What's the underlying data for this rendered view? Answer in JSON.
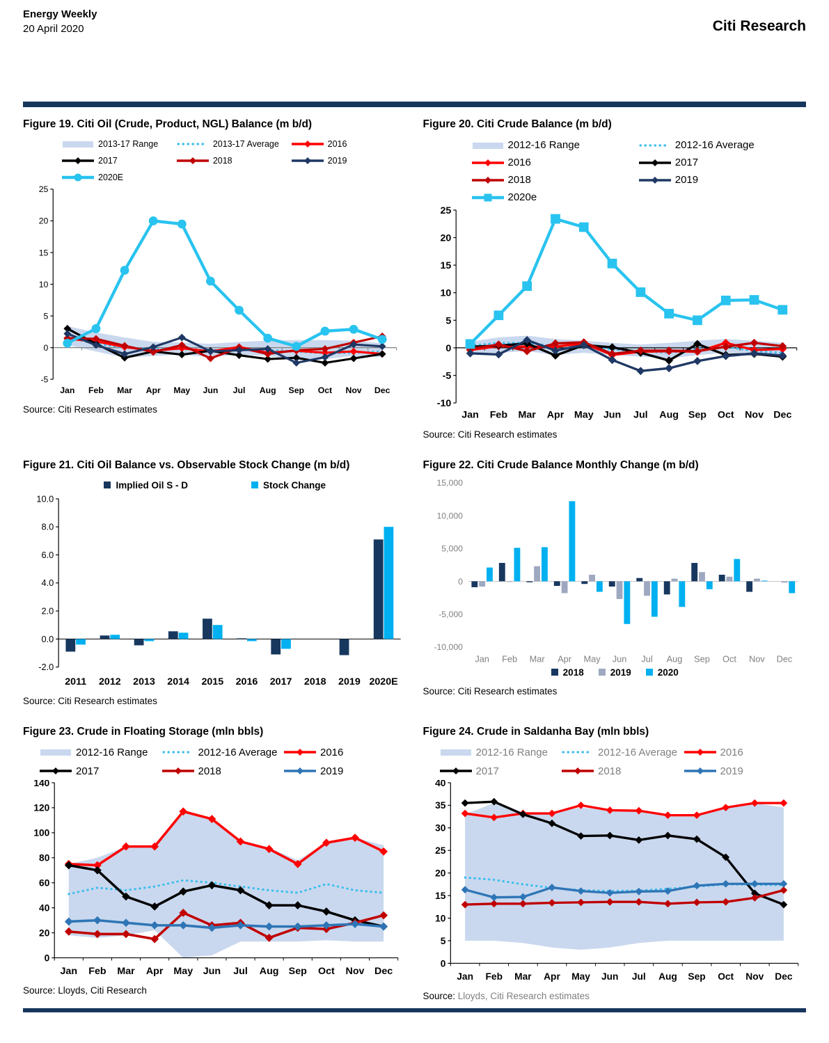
{
  "header": {
    "title": "Energy Weekly",
    "date": "20 April 2020",
    "brand": "Citi Research"
  },
  "chart_data": [
    {
      "figure": "Figure 19",
      "title": "Figure 19. Citi Oil (Crude, Product, NGL) Balance (m b/d)",
      "type": "line",
      "source_label": "Source:",
      "source_text": "Citi Research estimates",
      "categories": [
        "Jan",
        "Feb",
        "Mar",
        "Apr",
        "May",
        "Jun",
        "Jul",
        "Aug",
        "Sep",
        "Oct",
        "Nov",
        "Dec"
      ],
      "ylim": [
        -5,
        25
      ],
      "yticks": [
        "25",
        "20",
        "15",
        "10",
        "5",
        "0",
        "-5"
      ],
      "band": {
        "name": "2013-17 Range",
        "color": "#C9D8EE",
        "upper": [
          3.4,
          2.4,
          1.6,
          0.9,
          0.8,
          0.6,
          0.9,
          1.1,
          1.2,
          1.2,
          1.1,
          0.7
        ],
        "lower": [
          0.4,
          -0.6,
          -1.6,
          -1.3,
          -1.1,
          -1.5,
          -1.1,
          -1.3,
          -2.0,
          -1.8,
          -1.3,
          -1.5
        ]
      },
      "average": {
        "name": "2013-17 Average",
        "color": "#3FBEEE",
        "values": [
          1.6,
          0.6,
          0.0,
          -0.2,
          -0.2,
          -0.4,
          -0.3,
          -0.4,
          -0.6,
          -0.9,
          -0.8,
          -0.6
        ]
      },
      "series": [
        {
          "name": "2016",
          "color": "#FF0000",
          "marker": "diamond",
          "values": [
            1.4,
            1.0,
            0.1,
            -0.5,
            -0.1,
            -0.6,
            0.1,
            -0.8,
            -0.5,
            -0.8,
            -0.6,
            -1.0
          ]
        },
        {
          "name": "2017",
          "color": "#000000",
          "marker": "diamond",
          "values": [
            3.0,
            0.6,
            -1.6,
            -0.6,
            -1.1,
            -0.5,
            -1.2,
            -1.8,
            -1.6,
            -2.4,
            -1.7,
            -1.0
          ]
        },
        {
          "name": "2018",
          "color": "#C00000",
          "marker": "diamond",
          "values": [
            1.5,
            1.4,
            0.3,
            -0.7,
            0.4,
            -1.7,
            0.0,
            -1.0,
            -0.4,
            -0.2,
            0.8,
            1.8
          ]
        },
        {
          "name": "2019",
          "color": "#1F3864",
          "marker": "diamond",
          "values": [
            2.2,
            0.4,
            -1.0,
            0.1,
            1.6,
            -0.6,
            -0.4,
            -0.2,
            -2.4,
            -1.5,
            0.5,
            0.2
          ]
        },
        {
          "name": "2020E",
          "color": "#29C3EF",
          "marker": "circle",
          "values": [
            0.7,
            3.0,
            12.2,
            20.0,
            19.5,
            10.5,
            5.9,
            1.5,
            0.2,
            2.6,
            2.9,
            1.3
          ]
        }
      ],
      "legend": {
        "items": [
          {
            "label": "2013-17 Range",
            "swatch": "band"
          },
          {
            "label": "2013-17 Average",
            "swatch": "dotted"
          },
          {
            "label": "2016",
            "swatch": "line",
            "marker": "diamond",
            "color": "#FF0000"
          },
          {
            "label": "2017",
            "swatch": "line",
            "marker": "diamond",
            "color": "#000000"
          },
          {
            "label": "2018",
            "swatch": "line",
            "marker": "diamond",
            "color": "#C00000"
          },
          {
            "label": "2019",
            "swatch": "line",
            "marker": "diamond",
            "color": "#1F3864"
          },
          {
            "label": "2020E",
            "swatch": "line",
            "marker": "circle",
            "color": "#29C3EF"
          }
        ]
      }
    },
    {
      "figure": "Figure 20",
      "title": "Figure 20. Citi Crude Balance (m b/d)",
      "type": "line",
      "source_label": "Source:",
      "source_text": "Citi Research estimates",
      "categories": [
        "Jan",
        "Feb",
        "Mar",
        "Apr",
        "May",
        "Jun",
        "Jul",
        "Aug",
        "Sep",
        "Oct",
        "Nov",
        "Dec"
      ],
      "ylim": [
        -10,
        25
      ],
      "yticks": [
        "25",
        "20",
        "15",
        "10",
        "5",
        "0",
        "-5",
        "-10"
      ],
      "band": {
        "name": "2012-16 Range",
        "color": "#C9D8EE",
        "upper": [
          1.1,
          1.9,
          2.2,
          1.6,
          1.3,
          0.9,
          0.6,
          0.9,
          1.3,
          1.6,
          1.3,
          0.9
        ],
        "lower": [
          -0.9,
          -0.9,
          -0.6,
          -1.3,
          -0.9,
          -1.3,
          -1.6,
          -1.9,
          -1.3,
          -0.9,
          -1.3,
          -1.6
        ]
      },
      "average": {
        "name": "2012-16 Average",
        "color": "#3FBEEE",
        "values": [
          0.4,
          0.9,
          0.9,
          0.3,
          0.4,
          -0.3,
          -0.6,
          -0.9,
          -0.2,
          0.2,
          -0.6,
          -0.9
        ]
      },
      "series": [
        {
          "name": "2016",
          "color": "#FF0000",
          "marker": "diamond",
          "values": [
            -0.4,
            0.3,
            0.2,
            0.2,
            0.8,
            -1.3,
            -0.7,
            -0.6,
            -0.7,
            0.9,
            -0.4,
            -0.2
          ]
        },
        {
          "name": "2017",
          "color": "#000000",
          "marker": "diamond",
          "values": [
            0.2,
            0.4,
            0.8,
            -1.4,
            0.5,
            0.1,
            -0.9,
            -2.3,
            0.7,
            -1.3,
            -1.1,
            -1.6
          ]
        },
        {
          "name": "2018",
          "color": "#C00000",
          "marker": "diamond",
          "values": [
            -0.2,
            0.6,
            -0.6,
            0.8,
            1.0,
            -1.1,
            -0.5,
            -0.5,
            -0.6,
            0.2,
            0.9,
            0.3
          ]
        },
        {
          "name": "2019",
          "color": "#1F3864",
          "marker": "diamond",
          "values": [
            -1.0,
            -1.2,
            1.4,
            -0.5,
            0.5,
            -2.2,
            -4.2,
            -3.7,
            -2.4,
            -1.5,
            -1.0,
            -1.4
          ]
        },
        {
          "name": "2020e",
          "color": "#29C3EF",
          "marker": "square",
          "values": [
            0.7,
            5.9,
            11.2,
            23.4,
            21.9,
            15.3,
            10.1,
            6.2,
            5.0,
            8.6,
            8.7,
            6.9
          ]
        }
      ],
      "legend": {
        "items": [
          {
            "label": "2012-16 Range",
            "swatch": "band"
          },
          {
            "label": "2012-16 Average",
            "swatch": "dotted"
          },
          {
            "label": "2016",
            "swatch": "line",
            "marker": "diamond",
            "color": "#FF0000"
          },
          {
            "label": "2017",
            "swatch": "line",
            "marker": "diamond",
            "color": "#000000"
          },
          {
            "label": "2018",
            "swatch": "line",
            "marker": "diamond",
            "color": "#C00000"
          },
          {
            "label": "2019",
            "swatch": "line",
            "marker": "diamond",
            "color": "#1F3864"
          },
          {
            "label": "2020e",
            "swatch": "line",
            "marker": "square",
            "color": "#29C3EF"
          }
        ]
      }
    },
    {
      "figure": "Figure 21",
      "title": "Figure 21. Citi Oil Balance vs. Observable Stock Change (m b/d)",
      "type": "bar",
      "source_label": "Source:",
      "source_text": "Citi Research estimates",
      "categories": [
        "2011",
        "2012",
        "2013",
        "2014",
        "2015",
        "2016",
        "2017",
        "2018",
        "2019",
        "2020E"
      ],
      "ylim": [
        -2,
        10
      ],
      "yticks": [
        "10.0",
        "8.0",
        "6.0",
        "4.0",
        "2.0",
        "0.0",
        "-2.0"
      ],
      "series": [
        {
          "name": "Implied Oil S - D",
          "color": "#17375E",
          "values": [
            -0.9,
            0.25,
            -0.45,
            0.55,
            1.45,
            0.05,
            -1.1,
            0,
            -1.15,
            7.1
          ]
        },
        {
          "name": "Stock Change",
          "color": "#00B0F0",
          "values": [
            -0.4,
            0.3,
            -0.15,
            0.45,
            1.0,
            -0.15,
            -0.7,
            0,
            0,
            8.0
          ]
        }
      ],
      "legend": {
        "items": [
          {
            "label": "Implied Oil S - D",
            "swatch": "square",
            "color": "#17375E"
          },
          {
            "label": "Stock Change",
            "swatch": "square",
            "color": "#00B0F0"
          }
        ]
      }
    },
    {
      "figure": "Figure 22",
      "title": "Figure 22. Citi Crude Balance Monthly Change (m b/d)",
      "type": "bar",
      "source_label": "Source:",
      "source_text": "Citi Research estimates",
      "categories": [
        "Jan",
        "Feb",
        "Mar",
        "Apr",
        "May",
        "Jun",
        "Jul",
        "Aug",
        "Sep",
        "Oct",
        "Nov",
        "Dec"
      ],
      "ylim": [
        -10000,
        15000
      ],
      "yticks": [
        "15,000",
        "10,000",
        "5,000",
        "0",
        "-5,000",
        "-10,000"
      ],
      "series": [
        {
          "name": "2018",
          "color": "#17375E",
          "values": [
            -900,
            2800,
            -150,
            -700,
            -400,
            -800,
            500,
            -2000,
            2800,
            1000,
            -1600,
            0
          ]
        },
        {
          "name": "2019",
          "color": "#9EA8C0",
          "values": [
            -800,
            -100,
            2300,
            -1800,
            1000,
            -2700,
            -2200,
            400,
            1400,
            700,
            400,
            -200
          ]
        },
        {
          "name": "2020",
          "color": "#00B0F0",
          "values": [
            2100,
            5100,
            5200,
            12200,
            -1600,
            -6500,
            -5400,
            -3900,
            -1200,
            3400,
            100,
            -1800
          ]
        }
      ],
      "legend": {
        "items": [
          {
            "label": "2018",
            "swatch": "square",
            "color": "#17375E"
          },
          {
            "label": "2019",
            "swatch": "square",
            "color": "#9EA8C0"
          },
          {
            "label": "2020",
            "swatch": "square",
            "color": "#00B0F0"
          }
        ]
      }
    },
    {
      "figure": "Figure 23",
      "title": "Figure 23. Crude in Floating Storage (mln bbls)",
      "type": "line",
      "source_label": "Source:",
      "source_text": "Lloyds, Citi Research",
      "categories": [
        "Jan",
        "Feb",
        "Mar",
        "Apr",
        "May",
        "Jun",
        "Jul",
        "Aug",
        "Sep",
        "Oct",
        "Nov",
        "Dec"
      ],
      "ylim": [
        0,
        140
      ],
      "yticks": [
        "140",
        "120",
        "100",
        "80",
        "60",
        "40",
        "20",
        "0"
      ],
      "band": {
        "name": "2012-16 Range",
        "color": "#C9D8EE",
        "upper": [
          75,
          80,
          89,
          90,
          117,
          111,
          94,
          88,
          78,
          92,
          96,
          90
        ],
        "lower": [
          18,
          16,
          18,
          22,
          0,
          2,
          13,
          13,
          13,
          14,
          13,
          13
        ]
      },
      "average": {
        "name": "2012-16 Average",
        "color": "#3FBEEE",
        "values": [
          51,
          56,
          54,
          57,
          62,
          60,
          57,
          54,
          52,
          59,
          54,
          52
        ]
      },
      "series": [
        {
          "name": "2016",
          "color": "#FF0000",
          "marker": "diamond",
          "values": [
            75,
            74,
            89,
            89,
            117,
            111,
            93,
            87,
            75,
            92,
            96,
            85
          ]
        },
        {
          "name": "2017",
          "color": "#000000",
          "marker": "diamond",
          "values": [
            74,
            70,
            49,
            41,
            53,
            58,
            54,
            42,
            42,
            37,
            30,
            25
          ]
        },
        {
          "name": "2018",
          "color": "#C00000",
          "marker": "diamond",
          "values": [
            21,
            19,
            19,
            15,
            36,
            26,
            28,
            16,
            24,
            23,
            28,
            34
          ]
        },
        {
          "name": "2019",
          "color": "#2E75B6",
          "marker": "diamond",
          "values": [
            29,
            30,
            28,
            26,
            26,
            24,
            26,
            25,
            25,
            26,
            27,
            25
          ]
        }
      ],
      "legend": {
        "items": [
          {
            "label": "2012-16 Range",
            "swatch": "band"
          },
          {
            "label": "2012-16 Average",
            "swatch": "dotted"
          },
          {
            "label": "2016",
            "swatch": "line",
            "marker": "diamond",
            "color": "#FF0000"
          },
          {
            "label": "2017",
            "swatch": "line",
            "marker": "diamond",
            "color": "#000000"
          },
          {
            "label": "2018",
            "swatch": "line",
            "marker": "diamond",
            "color": "#C00000"
          },
          {
            "label": "2019",
            "swatch": "line",
            "marker": "diamond",
            "color": "#2E75B6"
          }
        ]
      }
    },
    {
      "figure": "Figure 24",
      "title": "Figure 24. Crude in Saldanha Bay (mln bbls)",
      "type": "line",
      "source_label": "Source:",
      "source_text": "Lloyds, Citi Research estimates",
      "source_muted": true,
      "categories": [
        "Jan",
        "Feb",
        "Mar",
        "Apr",
        "May",
        "Jun",
        "Jul",
        "Aug",
        "Sep",
        "Oct",
        "Nov",
        "Dec"
      ],
      "ylim": [
        0,
        40
      ],
      "yticks": [
        "40",
        "35",
        "30",
        "25",
        "20",
        "15",
        "10",
        "5",
        "0"
      ],
      "band": {
        "name": "2012-16 Range",
        "color": "#C9D8EE",
        "upper": [
          33,
          35.5,
          33,
          33.5,
          34.5,
          34,
          34,
          32.5,
          32.5,
          34.5,
          35.5,
          34.5
        ],
        "lower": [
          5,
          5,
          4.5,
          3.5,
          3,
          3.5,
          4.5,
          5,
          5,
          5,
          5,
          5
        ]
      },
      "average": {
        "name": "2012-16 Average",
        "color": "#3FBEEE",
        "values": [
          19,
          18.5,
          17.5,
          16.7,
          16.2,
          16,
          16.1,
          16.5,
          17,
          17.5,
          17.4,
          17.3
        ]
      },
      "series": [
        {
          "name": "2016",
          "color": "#FF0000",
          "marker": "diamond",
          "values": [
            33.2,
            32.3,
            33.2,
            33.2,
            35,
            33.9,
            33.8,
            32.8,
            32.8,
            34.5,
            35.5,
            35.5
          ]
        },
        {
          "name": "2017",
          "color": "#000000",
          "marker": "diamond",
          "values": [
            35.5,
            35.8,
            33,
            31,
            28.2,
            28.3,
            27.3,
            28.3,
            27.5,
            23.5,
            15.5,
            13
          ]
        },
        {
          "name": "2018",
          "color": "#C00000",
          "marker": "diamond",
          "values": [
            13,
            13.2,
            13.2,
            13.4,
            13.5,
            13.6,
            13.6,
            13.2,
            13.5,
            13.6,
            14.5,
            16.2
          ]
        },
        {
          "name": "2019",
          "color": "#2E75B6",
          "marker": "diamond",
          "values": [
            16.3,
            14.6,
            14.7,
            16.8,
            16,
            15.6,
            15.9,
            16,
            17.2,
            17.6,
            17.6,
            17.6
          ]
        }
      ],
      "legend": {
        "muted": true,
        "items": [
          {
            "label": "2012-16 Range",
            "swatch": "band"
          },
          {
            "label": "2012-16 Average",
            "swatch": "dotted"
          },
          {
            "label": "2016",
            "swatch": "line",
            "marker": "diamond",
            "color": "#FF0000"
          },
          {
            "label": "2017",
            "swatch": "line",
            "marker": "diamond",
            "color": "#000000"
          },
          {
            "label": "2018",
            "swatch": "line",
            "marker": "diamond",
            "color": "#C00000"
          },
          {
            "label": "2019",
            "swatch": "line",
            "marker": "diamond",
            "color": "#2E75B6"
          }
        ]
      }
    }
  ]
}
